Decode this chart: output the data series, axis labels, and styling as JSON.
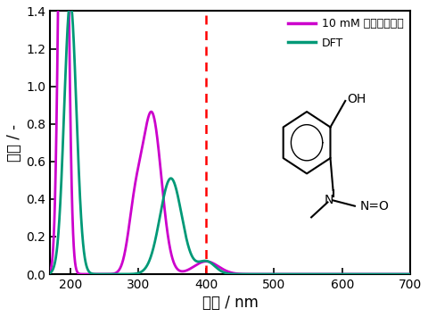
{
  "xlabel": "波長 / nm",
  "ylabel": "吸収 / -",
  "xlim": [
    170,
    700
  ],
  "ylim": [
    0,
    1.4
  ],
  "xticks": [
    200,
    300,
    400,
    500,
    600,
    700
  ],
  "yticks": [
    0,
    0.2,
    0.4,
    0.6,
    0.8,
    1.0,
    1.2,
    1.4
  ],
  "vline_x": 400,
  "vline_color": "#ff0000",
  "purple_color": "#cc00cc",
  "green_color": "#009977",
  "legend_label1": "10 mM メタノール中",
  "legend_label2": "DFT",
  "bg_color": "#ffffff",
  "fg_color": "#000000",
  "axes_bg_color": "#ffffff",
  "linewidth": 2.0,
  "mol_text_color": "#000000"
}
